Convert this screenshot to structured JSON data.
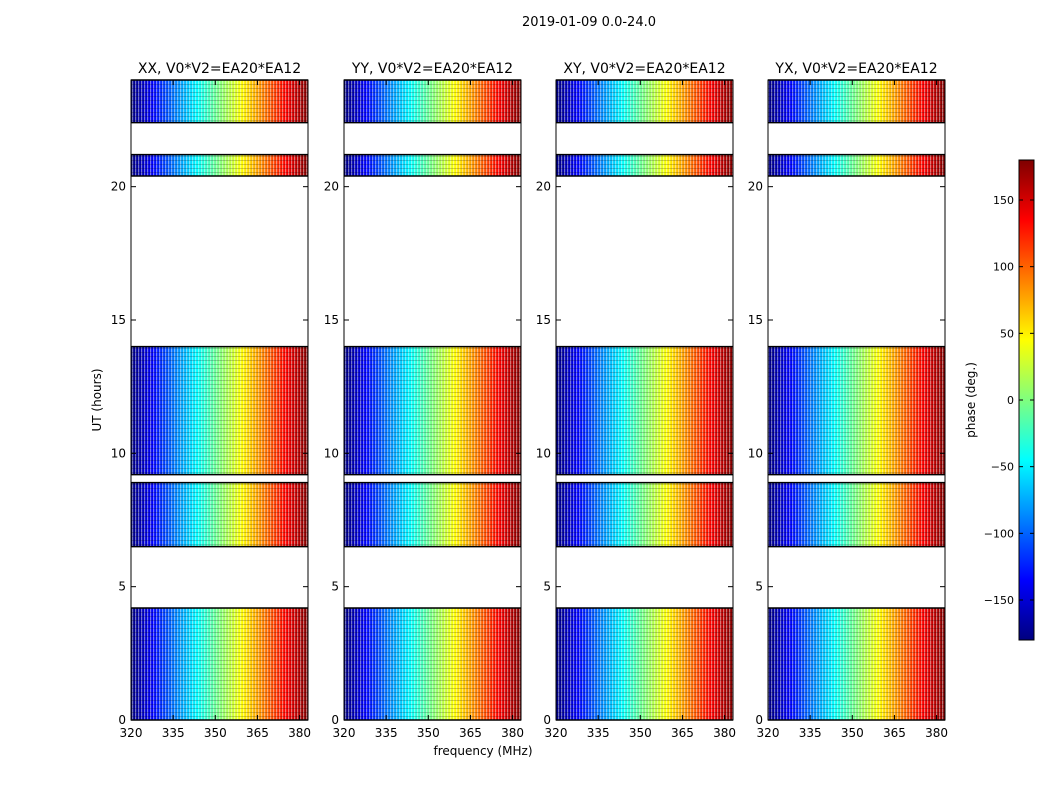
{
  "figure": {
    "suptitle": "2019-01-09 0.0-24.0"
  },
  "chart_data": {
    "type": "heatmap",
    "title": "2019-01-09 0.0-24.0",
    "xlabel": "frequency (MHz)",
    "ylabel": "UT (hours)",
    "xlim": [
      320,
      383
    ],
    "ylim": [
      0,
      24
    ],
    "xticks": [
      320,
      335,
      350,
      365,
      380
    ],
    "yticks": [
      0,
      5,
      10,
      15,
      20
    ],
    "colorbar": {
      "label": "phase (deg.)",
      "range": [
        -180,
        180
      ],
      "ticks": [
        150,
        100,
        50,
        0,
        -50,
        -100,
        -150
      ],
      "colormap": "jet",
      "colors": [
        "#00007f",
        "#0000ff",
        "#007fff",
        "#00ffff",
        "#7fff7f",
        "#ffff00",
        "#ff7f00",
        "#ff0000",
        "#7f0000"
      ]
    },
    "panels": [
      {
        "name": "XX",
        "title": "XX, V0*V2=EA20*EA12"
      },
      {
        "name": "YY",
        "title": "YY, V0*V2=EA20*EA12"
      },
      {
        "name": "XY",
        "title": "XY, V0*V2=EA20*EA12"
      },
      {
        "name": "YX",
        "title": "YX, V0*V2=EA20*EA12"
      }
    ],
    "data_time_ranges_hours": [
      [
        0.0,
        4.2
      ],
      [
        6.5,
        8.9
      ],
      [
        9.2,
        14.0
      ],
      [
        20.4,
        21.2
      ],
      [
        22.4,
        24.0
      ]
    ]
  }
}
